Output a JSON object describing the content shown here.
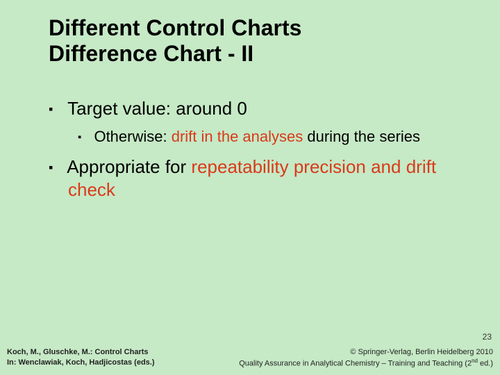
{
  "background_color": "#c6e9c6",
  "highlight_color": "#d93a1a",
  "text_color": "#000000",
  "title": {
    "line1": "Different Control Charts",
    "line2": "Difference Chart - II",
    "fontsize": 32,
    "fontweight": "bold"
  },
  "bullets": {
    "lvl1_fontsize": 26,
    "lvl2_fontsize": 22,
    "items": [
      {
        "text": "Target value: around 0",
        "children": [
          {
            "pre": "Otherwise: ",
            "hl": "drift in the analyses",
            "post": " during the series"
          }
        ]
      },
      {
        "pre": "Appropriate for ",
        "hl": "repeatability precision and drift check",
        "post": ""
      }
    ]
  },
  "page_number": "23",
  "footer": {
    "left_line1": "Koch, M., Gluschke, M.: Control Charts",
    "left_line2": "In: Wenclawiak, Koch, Hadjicostas (eds.)",
    "right_line1": "© Springer-Verlag, Berlin Heidelberg 2010",
    "right_line2_pre": "Quality Assurance in Analytical Chemistry – Training and Teaching (2",
    "right_line2_sup": "nd",
    "right_line2_post": " ed.)"
  }
}
